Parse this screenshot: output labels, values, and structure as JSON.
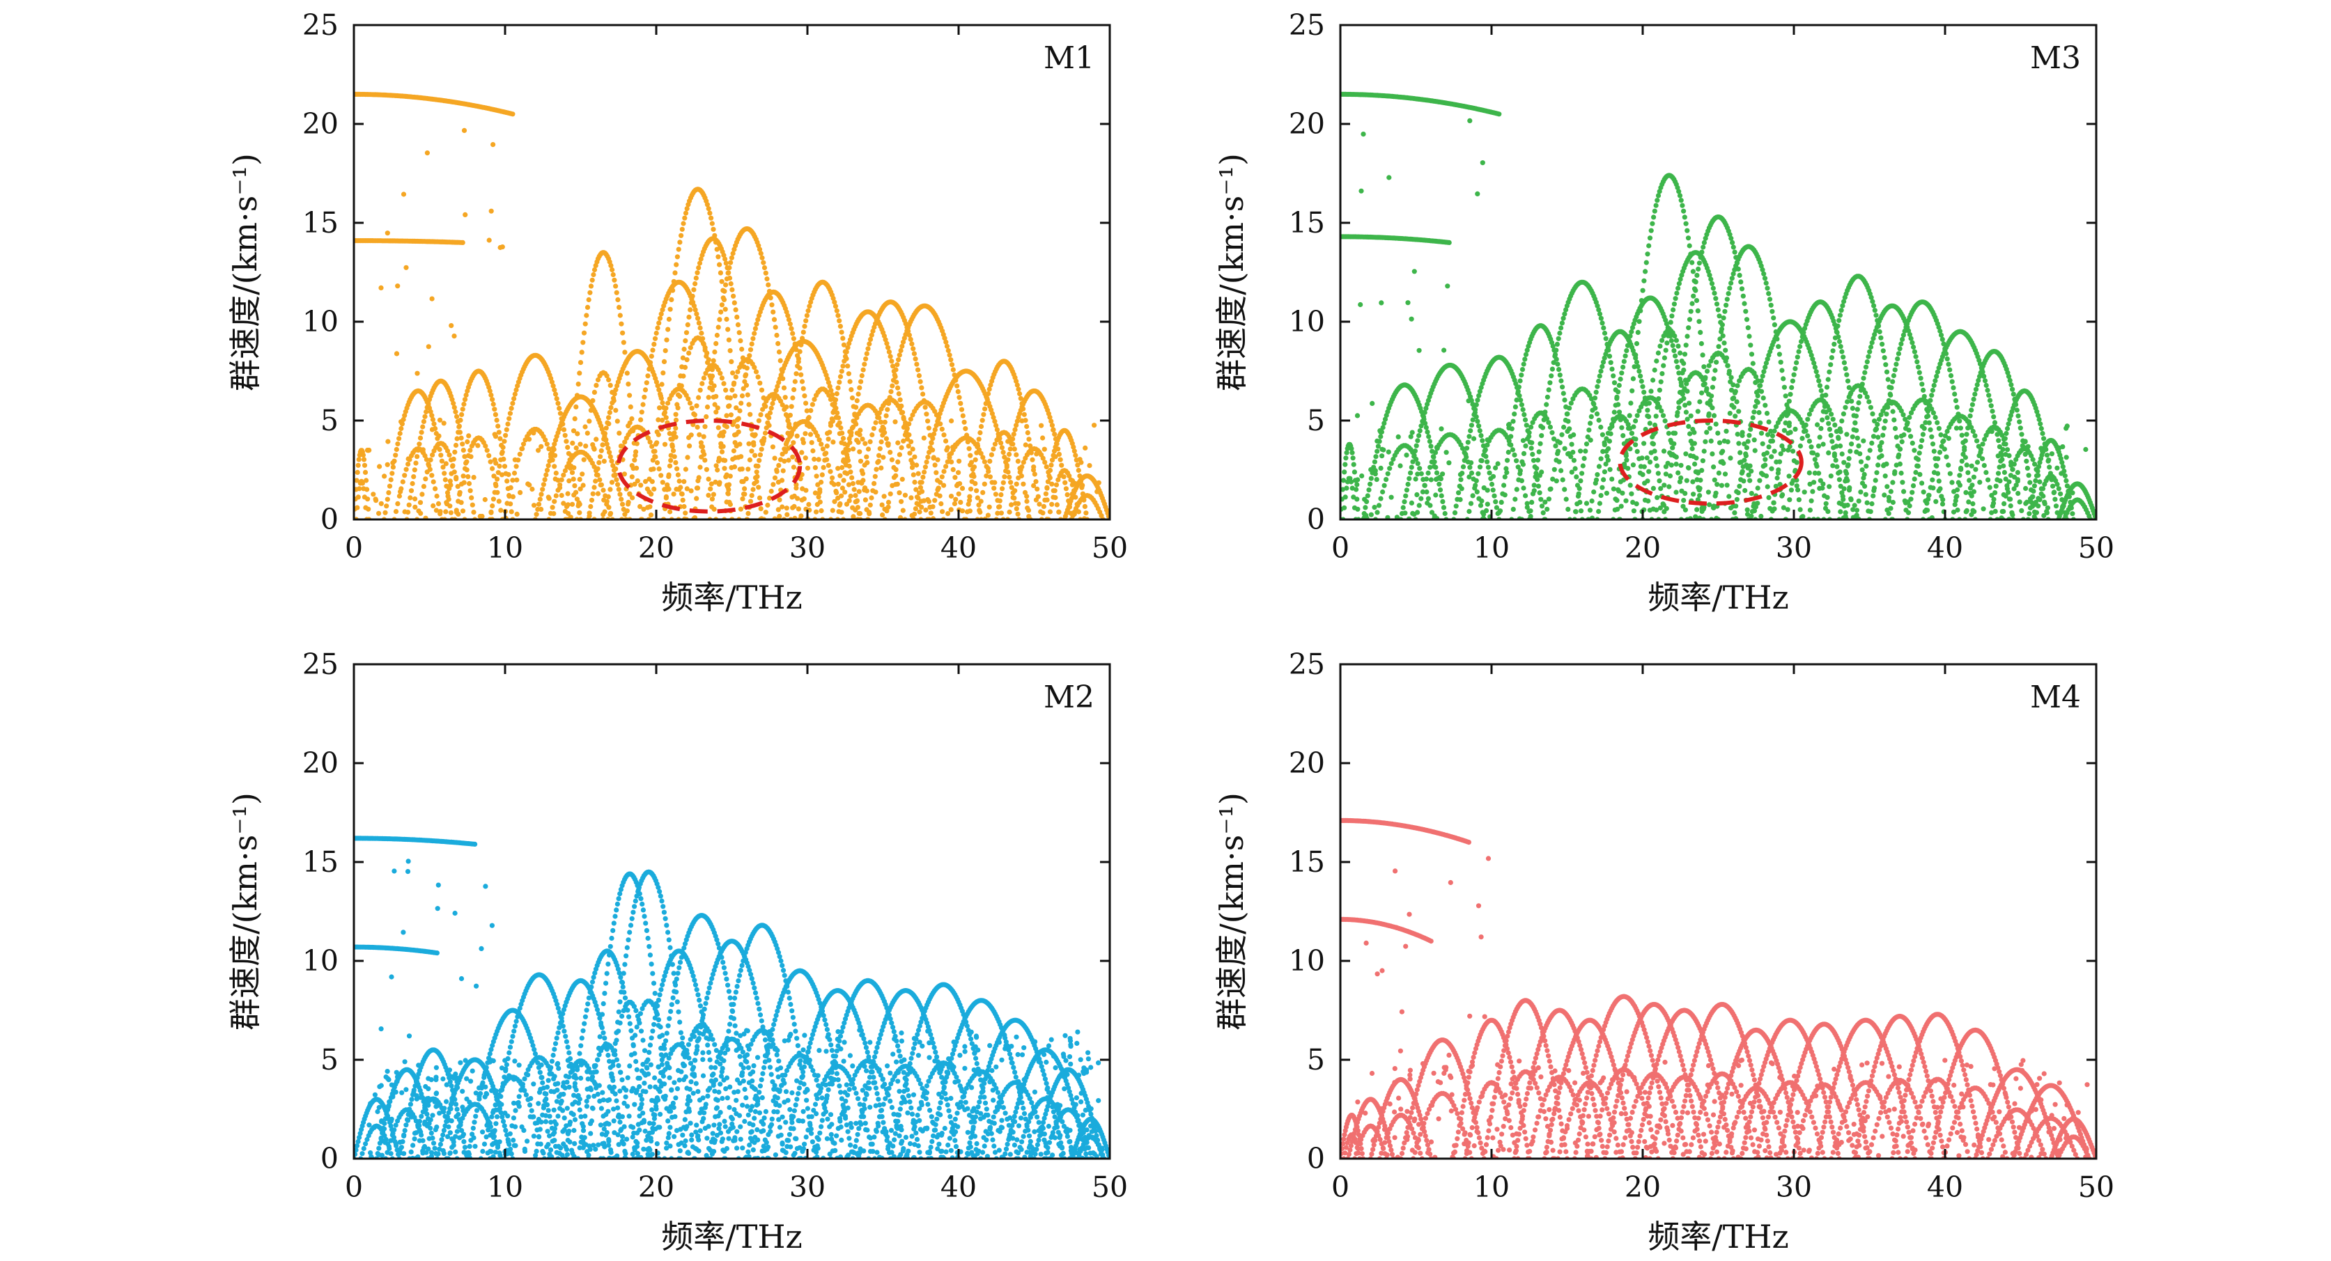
{
  "chart_data": [
    {
      "type": "scatter",
      "panel_label": "M1",
      "color": "#F5A623",
      "xlabel": "频率/THz",
      "ylabel": "群速度/(km·s⁻¹)",
      "xlim": [
        0,
        50
      ],
      "ylim": [
        0,
        25
      ],
      "xticks": [
        0,
        10,
        20,
        30,
        40,
        50
      ],
      "yticks": [
        0,
        5,
        10,
        15,
        20,
        25
      ],
      "highlight_ellipse": {
        "cx": 23.5,
        "cy": 2.7,
        "rx": 6,
        "ry": 2.3,
        "color": "#DD1E1E"
      },
      "branches": [
        {
          "x0": 0,
          "x1": 10.5,
          "y0": 21.5,
          "y1": 20.5
        },
        {
          "x0": 0,
          "x1": 7.2,
          "y0": 14.1,
          "y1": 14.0
        },
        {
          "x0": 0.9,
          "x1": 1.0,
          "y0": 3.5,
          "y1": 3.5
        }
      ],
      "arcs": [
        {
          "x0": 0,
          "x1": 1.0,
          "peak": 3.5
        },
        {
          "x0": 2.0,
          "x1": 6.5,
          "peak": 6.5
        },
        {
          "x0": 3.5,
          "x1": 8.0,
          "peak": 7.0
        },
        {
          "x0": 6.0,
          "x1": 10.5,
          "peak": 7.5
        },
        {
          "x0": 9.0,
          "x1": 15.0,
          "peak": 8.3
        },
        {
          "x0": 12.0,
          "x1": 18.0,
          "peak": 6.2
        },
        {
          "x0": 14.0,
          "x1": 19.0,
          "peak": 13.5
        },
        {
          "x0": 15.5,
          "x1": 22.0,
          "peak": 8.5
        },
        {
          "x0": 18.0,
          "x1": 25.0,
          "peak": 12.0
        },
        {
          "x0": 19.5,
          "x1": 26.0,
          "peak": 16.7
        },
        {
          "x0": 20.5,
          "x1": 27.0,
          "peak": 14.2
        },
        {
          "x0": 22.5,
          "x1": 29.5,
          "peak": 14.7
        },
        {
          "x0": 24.5,
          "x1": 31.0,
          "peak": 11.5
        },
        {
          "x0": 26.0,
          "x1": 33.5,
          "peak": 9.0
        },
        {
          "x0": 28.0,
          "x1": 34.0,
          "peak": 12.0
        },
        {
          "x0": 30.5,
          "x1": 37.5,
          "peak": 10.5
        },
        {
          "x0": 32.0,
          "x1": 39.0,
          "peak": 11.0
        },
        {
          "x0": 34.0,
          "x1": 41.5,
          "peak": 10.8
        },
        {
          "x0": 37.0,
          "x1": 44.0,
          "peak": 7.5
        },
        {
          "x0": 40.5,
          "x1": 45.5,
          "peak": 8.0
        },
        {
          "x0": 42.5,
          "x1": 47.5,
          "peak": 6.5
        },
        {
          "x0": 45.5,
          "x1": 48.5,
          "peak": 4.5
        },
        {
          "x0": 47.0,
          "x1": 50.0,
          "peak": 2.2
        }
      ]
    },
    {
      "type": "scatter",
      "panel_label": "M3",
      "color": "#3DB54A",
      "xlabel": "频率/THz",
      "ylabel": "群速度/(km·s⁻¹)",
      "xlim": [
        0,
        50
      ],
      "ylim": [
        0,
        25
      ],
      "xticks": [
        0,
        10,
        20,
        30,
        40,
        50
      ],
      "yticks": [
        0,
        5,
        10,
        15,
        20,
        25
      ],
      "highlight_ellipse": {
        "cx": 24.5,
        "cy": 2.9,
        "rx": 6,
        "ry": 2.1,
        "color": "#DD1E1E"
      },
      "branches": [
        {
          "x0": 0,
          "x1": 10.5,
          "y0": 21.5,
          "y1": 20.5
        },
        {
          "x0": 0,
          "x1": 7.2,
          "y0": 14.3,
          "y1": 14.0
        }
      ],
      "arcs": [
        {
          "x0": 0,
          "x1": 1.2,
          "peak": 3.8
        },
        {
          "x0": 1.5,
          "x1": 7.0,
          "peak": 6.8
        },
        {
          "x0": 4.0,
          "x1": 10.5,
          "peak": 7.8
        },
        {
          "x0": 7.5,
          "x1": 13.5,
          "peak": 8.2
        },
        {
          "x0": 10.5,
          "x1": 16.0,
          "peak": 9.8
        },
        {
          "x0": 12.5,
          "x1": 19.5,
          "peak": 12.0
        },
        {
          "x0": 15.5,
          "x1": 21.5,
          "peak": 9.5
        },
        {
          "x0": 17.0,
          "x1": 24.0,
          "peak": 11.2
        },
        {
          "x0": 18.5,
          "x1": 25.0,
          "peak": 17.4
        },
        {
          "x0": 20.0,
          "x1": 27.0,
          "peak": 13.5
        },
        {
          "x0": 21.5,
          "x1": 28.5,
          "peak": 15.3
        },
        {
          "x0": 23.5,
          "x1": 30.5,
          "peak": 13.8
        },
        {
          "x0": 26.0,
          "x1": 33.5,
          "peak": 10.0
        },
        {
          "x0": 28.5,
          "x1": 35.0,
          "peak": 11.0
        },
        {
          "x0": 31.0,
          "x1": 37.5,
          "peak": 12.3
        },
        {
          "x0": 33.0,
          "x1": 40.0,
          "peak": 10.8
        },
        {
          "x0": 35.0,
          "x1": 42.0,
          "peak": 11.0
        },
        {
          "x0": 37.5,
          "x1": 44.5,
          "peak": 9.5
        },
        {
          "x0": 40.5,
          "x1": 46.0,
          "peak": 8.5
        },
        {
          "x0": 43.0,
          "x1": 47.5,
          "peak": 6.5
        },
        {
          "x0": 45.5,
          "x1": 48.5,
          "peak": 4.0
        },
        {
          "x0": 47.5,
          "x1": 50.0,
          "peak": 1.8
        }
      ]
    },
    {
      "type": "scatter",
      "panel_label": "M2",
      "color": "#1AABDC",
      "xlabel": "频率/THz",
      "ylabel": "群速度/(km·s⁻¹)",
      "xlim": [
        0,
        50
      ],
      "ylim": [
        0,
        25
      ],
      "xticks": [
        0,
        10,
        20,
        30,
        40,
        50
      ],
      "yticks": [
        0,
        5,
        10,
        15,
        20,
        25
      ],
      "branches": [
        {
          "x0": 0,
          "x1": 8.0,
          "y0": 16.2,
          "y1": 15.9
        },
        {
          "x0": 0,
          "x1": 5.5,
          "y0": 10.7,
          "y1": 10.4
        }
      ],
      "arcs": [
        {
          "x0": 0,
          "x1": 3.0,
          "peak": 3.0
        },
        {
          "x0": 1.5,
          "x1": 5.5,
          "peak": 4.5
        },
        {
          "x0": 3.0,
          "x1": 7.5,
          "peak": 5.5
        },
        {
          "x0": 5.5,
          "x1": 10.5,
          "peak": 5.0
        },
        {
          "x0": 7.5,
          "x1": 13.5,
          "peak": 7.5
        },
        {
          "x0": 9.0,
          "x1": 15.5,
          "peak": 9.3
        },
        {
          "x0": 12.0,
          "x1": 18.0,
          "peak": 9.0
        },
        {
          "x0": 14.0,
          "x1": 19.5,
          "peak": 10.5
        },
        {
          "x0": 15.5,
          "x1": 21.0,
          "peak": 14.4
        },
        {
          "x0": 16.5,
          "x1": 22.5,
          "peak": 14.5
        },
        {
          "x0": 18.5,
          "x1": 24.5,
          "peak": 10.5
        },
        {
          "x0": 19.5,
          "x1": 26.5,
          "peak": 12.3
        },
        {
          "x0": 21.5,
          "x1": 28.5,
          "peak": 11.0
        },
        {
          "x0": 23.5,
          "x1": 30.5,
          "peak": 11.8
        },
        {
          "x0": 26.0,
          "x1": 33.0,
          "peak": 9.5
        },
        {
          "x0": 28.5,
          "x1": 35.5,
          "peak": 8.5
        },
        {
          "x0": 30.5,
          "x1": 37.5,
          "peak": 9.0
        },
        {
          "x0": 33.0,
          "x1": 40.0,
          "peak": 8.5
        },
        {
          "x0": 35.5,
          "x1": 42.5,
          "peak": 8.8
        },
        {
          "x0": 38.0,
          "x1": 45.0,
          "peak": 8.0
        },
        {
          "x0": 40.5,
          "x1": 47.0,
          "peak": 7.0
        },
        {
          "x0": 43.0,
          "x1": 48.5,
          "peak": 5.5
        },
        {
          "x0": 45.0,
          "x1": 49.5,
          "peak": 4.5
        },
        {
          "x0": 47.5,
          "x1": 50.0,
          "peak": 2.0
        }
      ]
    },
    {
      "type": "scatter",
      "panel_label": "M4",
      "color": "#F07070",
      "xlabel": "频率/THz",
      "ylabel": "群速度/(km·s⁻¹)",
      "xlim": [
        0,
        50
      ],
      "ylim": [
        0,
        25
      ],
      "xticks": [
        0,
        10,
        20,
        30,
        40,
        50
      ],
      "yticks": [
        0,
        5,
        10,
        15,
        20,
        25
      ],
      "branches": [
        {
          "x0": 0,
          "x1": 8.5,
          "y0": 17.1,
          "y1": 16.0
        },
        {
          "x0": 0,
          "x1": 6.0,
          "y0": 12.1,
          "y1": 11.0
        }
      ],
      "arcs": [
        {
          "x0": 0,
          "x1": 1.5,
          "peak": 2.2
        },
        {
          "x0": 0.5,
          "x1": 3.5,
          "peak": 3.0
        },
        {
          "x0": 2.0,
          "x1": 6.0,
          "peak": 4.0
        },
        {
          "x0": 4.0,
          "x1": 9.5,
          "peak": 6.0
        },
        {
          "x0": 7.5,
          "x1": 12.5,
          "peak": 7.0
        },
        {
          "x0": 9.5,
          "x1": 15.0,
          "peak": 8.0
        },
        {
          "x0": 11.5,
          "x1": 17.5,
          "peak": 7.5
        },
        {
          "x0": 13.5,
          "x1": 19.5,
          "peak": 7.0
        },
        {
          "x0": 15.5,
          "x1": 22.0,
          "peak": 8.2
        },
        {
          "x0": 17.5,
          "x1": 24.0,
          "peak": 7.8
        },
        {
          "x0": 19.5,
          "x1": 26.0,
          "peak": 7.5
        },
        {
          "x0": 22.0,
          "x1": 28.5,
          "peak": 7.8
        },
        {
          "x0": 24.5,
          "x1": 30.5,
          "peak": 6.5
        },
        {
          "x0": 26.5,
          "x1": 33.0,
          "peak": 7.0
        },
        {
          "x0": 29.0,
          "x1": 35.0,
          "peak": 6.8
        },
        {
          "x0": 31.5,
          "x1": 38.0,
          "peak": 7.0
        },
        {
          "x0": 34.0,
          "x1": 40.0,
          "peak": 7.2
        },
        {
          "x0": 36.5,
          "x1": 42.5,
          "peak": 7.3
        },
        {
          "x0": 39.0,
          "x1": 45.0,
          "peak": 6.5
        },
        {
          "x0": 42.0,
          "x1": 47.5,
          "peak": 4.5
        },
        {
          "x0": 44.5,
          "x1": 49.5,
          "peak": 3.7
        },
        {
          "x0": 47.0,
          "x1": 50.0,
          "peak": 2.0
        }
      ]
    }
  ]
}
